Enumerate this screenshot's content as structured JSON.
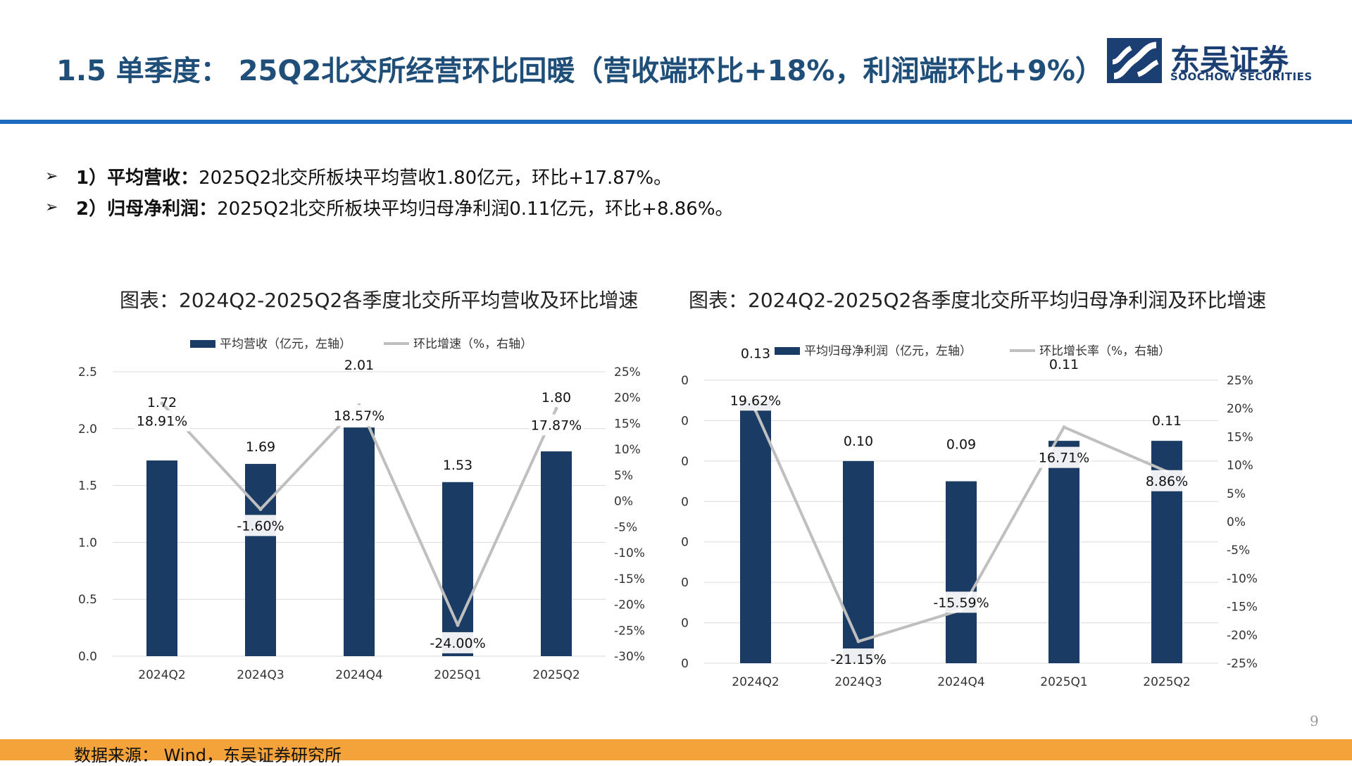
{
  "header": {
    "title": "1.5 单季度： 25Q2北交所经营环比回暖（营收端环比+18%，利润端环比+9%）",
    "logo_cn": "东吴证券",
    "logo_en": "SOOCHOW SECURITIES",
    "accent_color": "#1f6bbd",
    "logo_color": "#1b3f73"
  },
  "bullets": [
    {
      "label": "1）平均营收：",
      "text": "2025Q2北交所板块平均营收1.80亿元，环比+17.87%。"
    },
    {
      "label": "2）归母净利润：",
      "text": "2025Q2北交所板块平均归母净利润0.11亿元，环比+8.86%。"
    }
  ],
  "bullet_icon": "arrow-bullet-icon",
  "chart_data": [
    {
      "type": "bar",
      "title": "图表：2024Q2-2025Q2各季度北交所平均营收及环比增速",
      "categories": [
        "2024Q2",
        "2024Q3",
        "2024Q4",
        "2025Q1",
        "2025Q2"
      ],
      "series": [
        {
          "name": "平均营收（亿元，左轴）",
          "type": "bar",
          "axis": "left",
          "values": [
            1.72,
            1.69,
            2.01,
            1.53,
            1.8
          ],
          "labels": [
            "1.72",
            "1.69",
            "2.01",
            "1.53",
            "1.80"
          ],
          "color": "#1a3b63"
        },
        {
          "name": "环比增速（%，右轴）",
          "type": "line",
          "axis": "right",
          "values": [
            18.91,
            -1.6,
            18.57,
            -24.0,
            17.87
          ],
          "labels": [
            "18.91%",
            "-1.60%",
            "18.57%",
            "-24.00%",
            "17.87%"
          ],
          "color": "#bfbfbf"
        }
      ],
      "y_left": {
        "range": [
          0,
          2.5
        ],
        "ticks": [
          "0.0",
          "0.5",
          "1.0",
          "1.5",
          "2.0",
          "2.5"
        ]
      },
      "y_right": {
        "range": [
          -30,
          25
        ],
        "ticks": [
          "-30%",
          "-25%",
          "-20%",
          "-15%",
          "-10%",
          "-5%",
          "0%",
          "5%",
          "10%",
          "15%",
          "20%",
          "25%"
        ]
      },
      "grid": true,
      "legend": "top"
    },
    {
      "type": "bar",
      "title": "图表：2024Q2-2025Q2各季度北交所平均归母净利润及环比增速",
      "categories": [
        "2024Q2",
        "2024Q3",
        "2024Q4",
        "2025Q1",
        "2025Q2"
      ],
      "series": [
        {
          "name": "平均归母净利润（亿元，左轴）",
          "type": "bar",
          "axis": "left",
          "values": [
            0.13,
            0.1,
            0.09,
            0.11,
            0.11
          ],
          "labels": [
            "0.13",
            "0.10",
            "0.09",
            "0.11",
            "0.11"
          ],
          "color": "#1a3b63"
        },
        {
          "name": "环比增长率（%，右轴）",
          "type": "line",
          "axis": "right",
          "values": [
            19.62,
            -21.15,
            -15.59,
            16.71,
            8.86
          ],
          "labels": [
            "19.62%",
            "-21.15%",
            "-15.59%",
            "16.71%",
            "8.86%"
          ],
          "color": "#bfbfbf"
        }
      ],
      "y_left": {
        "range": [
          0,
          0.14
        ],
        "ticks": [
          "0",
          "0",
          "0",
          "0",
          "0",
          "0",
          "0",
          "0"
        ]
      },
      "y_right": {
        "range": [
          -25,
          25
        ],
        "ticks": [
          "-25%",
          "-20%",
          "-15%",
          "-10%",
          "-5%",
          "0%",
          "5%",
          "10%",
          "15%",
          "20%",
          "25%"
        ]
      },
      "grid": true,
      "legend": "top"
    }
  ],
  "page_number": "9",
  "footer": {
    "source": "数据来源： Wind，东吴证券研究所",
    "color": "#f4a23a"
  }
}
